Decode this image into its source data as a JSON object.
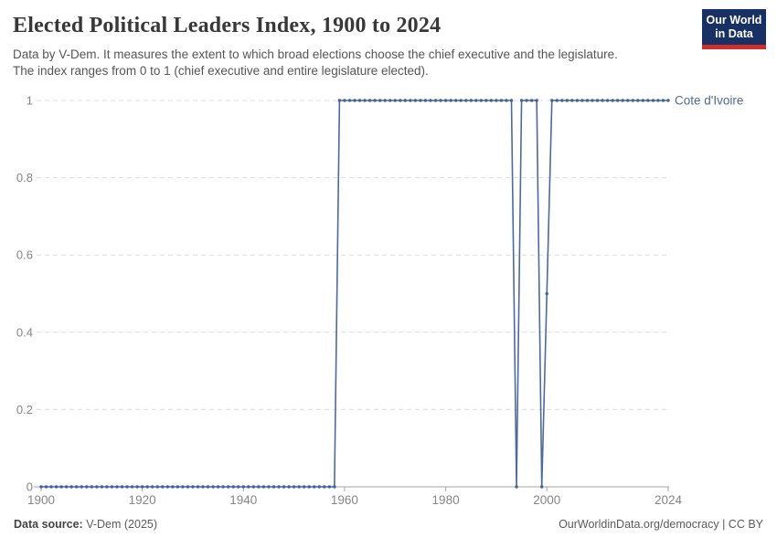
{
  "header": {
    "title": "Elected Political Leaders Index, 1900 to 2024",
    "subtitle_line1": "Data by V-Dem. It measures the extent to which broad elections choose the chief executive and the legislature.",
    "subtitle_line2": "The index ranges from 0 to 1 (chief executive and entire legislature elected).",
    "logo": {
      "line1": "Our World",
      "line2": "in Data",
      "bg_color": "#183063",
      "accent_color": "#cf2f28"
    }
  },
  "chart_data": {
    "type": "line",
    "title": "Elected Political Leaders Index, 1900 to 2024",
    "xlabel": "",
    "ylabel": "",
    "x_range": [
      1900,
      2024
    ],
    "ylim": [
      0,
      1
    ],
    "x_ticks": [
      1900,
      1920,
      1940,
      1960,
      1980,
      2000,
      2024
    ],
    "y_ticks": [
      0,
      0.2,
      0.4,
      0.6,
      0.8,
      1
    ],
    "grid": "horizontal-dashed",
    "legend_position": "end-of-line-label",
    "axis_color": "#a5a5a5",
    "grid_color": "#dcdcdc",
    "tick_label_color": "#858585",
    "series": [
      {
        "name": "Cote d'Ivoire",
        "color": "#4c6a9c",
        "dot_color": "#44619b",
        "x_start": 1900,
        "x_step": 1,
        "values": [
          0,
          0,
          0,
          0,
          0,
          0,
          0,
          0,
          0,
          0,
          0,
          0,
          0,
          0,
          0,
          0,
          0,
          0,
          0,
          0,
          0,
          0,
          0,
          0,
          0,
          0,
          0,
          0,
          0,
          0,
          0,
          0,
          0,
          0,
          0,
          0,
          0,
          0,
          0,
          0,
          0,
          0,
          0,
          0,
          0,
          0,
          0,
          0,
          0,
          0,
          0,
          0,
          0,
          0,
          0,
          0,
          0,
          0,
          0,
          1,
          1,
          1,
          1,
          1,
          1,
          1,
          1,
          1,
          1,
          1,
          1,
          1,
          1,
          1,
          1,
          1,
          1,
          1,
          1,
          1,
          1,
          1,
          1,
          1,
          1,
          1,
          1,
          1,
          1,
          1,
          1,
          1,
          1,
          1,
          0,
          1,
          1,
          1,
          1,
          0,
          0.5,
          1,
          1,
          1,
          1,
          1,
          1,
          1,
          1,
          1,
          1,
          1,
          1,
          1,
          1,
          1,
          1,
          1,
          1,
          1,
          1,
          1,
          1,
          1,
          1
        ]
      }
    ]
  },
  "footer": {
    "source_label": "Data source:",
    "source_value": " V-Dem (2025)",
    "credit": "OurWorldinData.org/democracy | CC BY"
  }
}
